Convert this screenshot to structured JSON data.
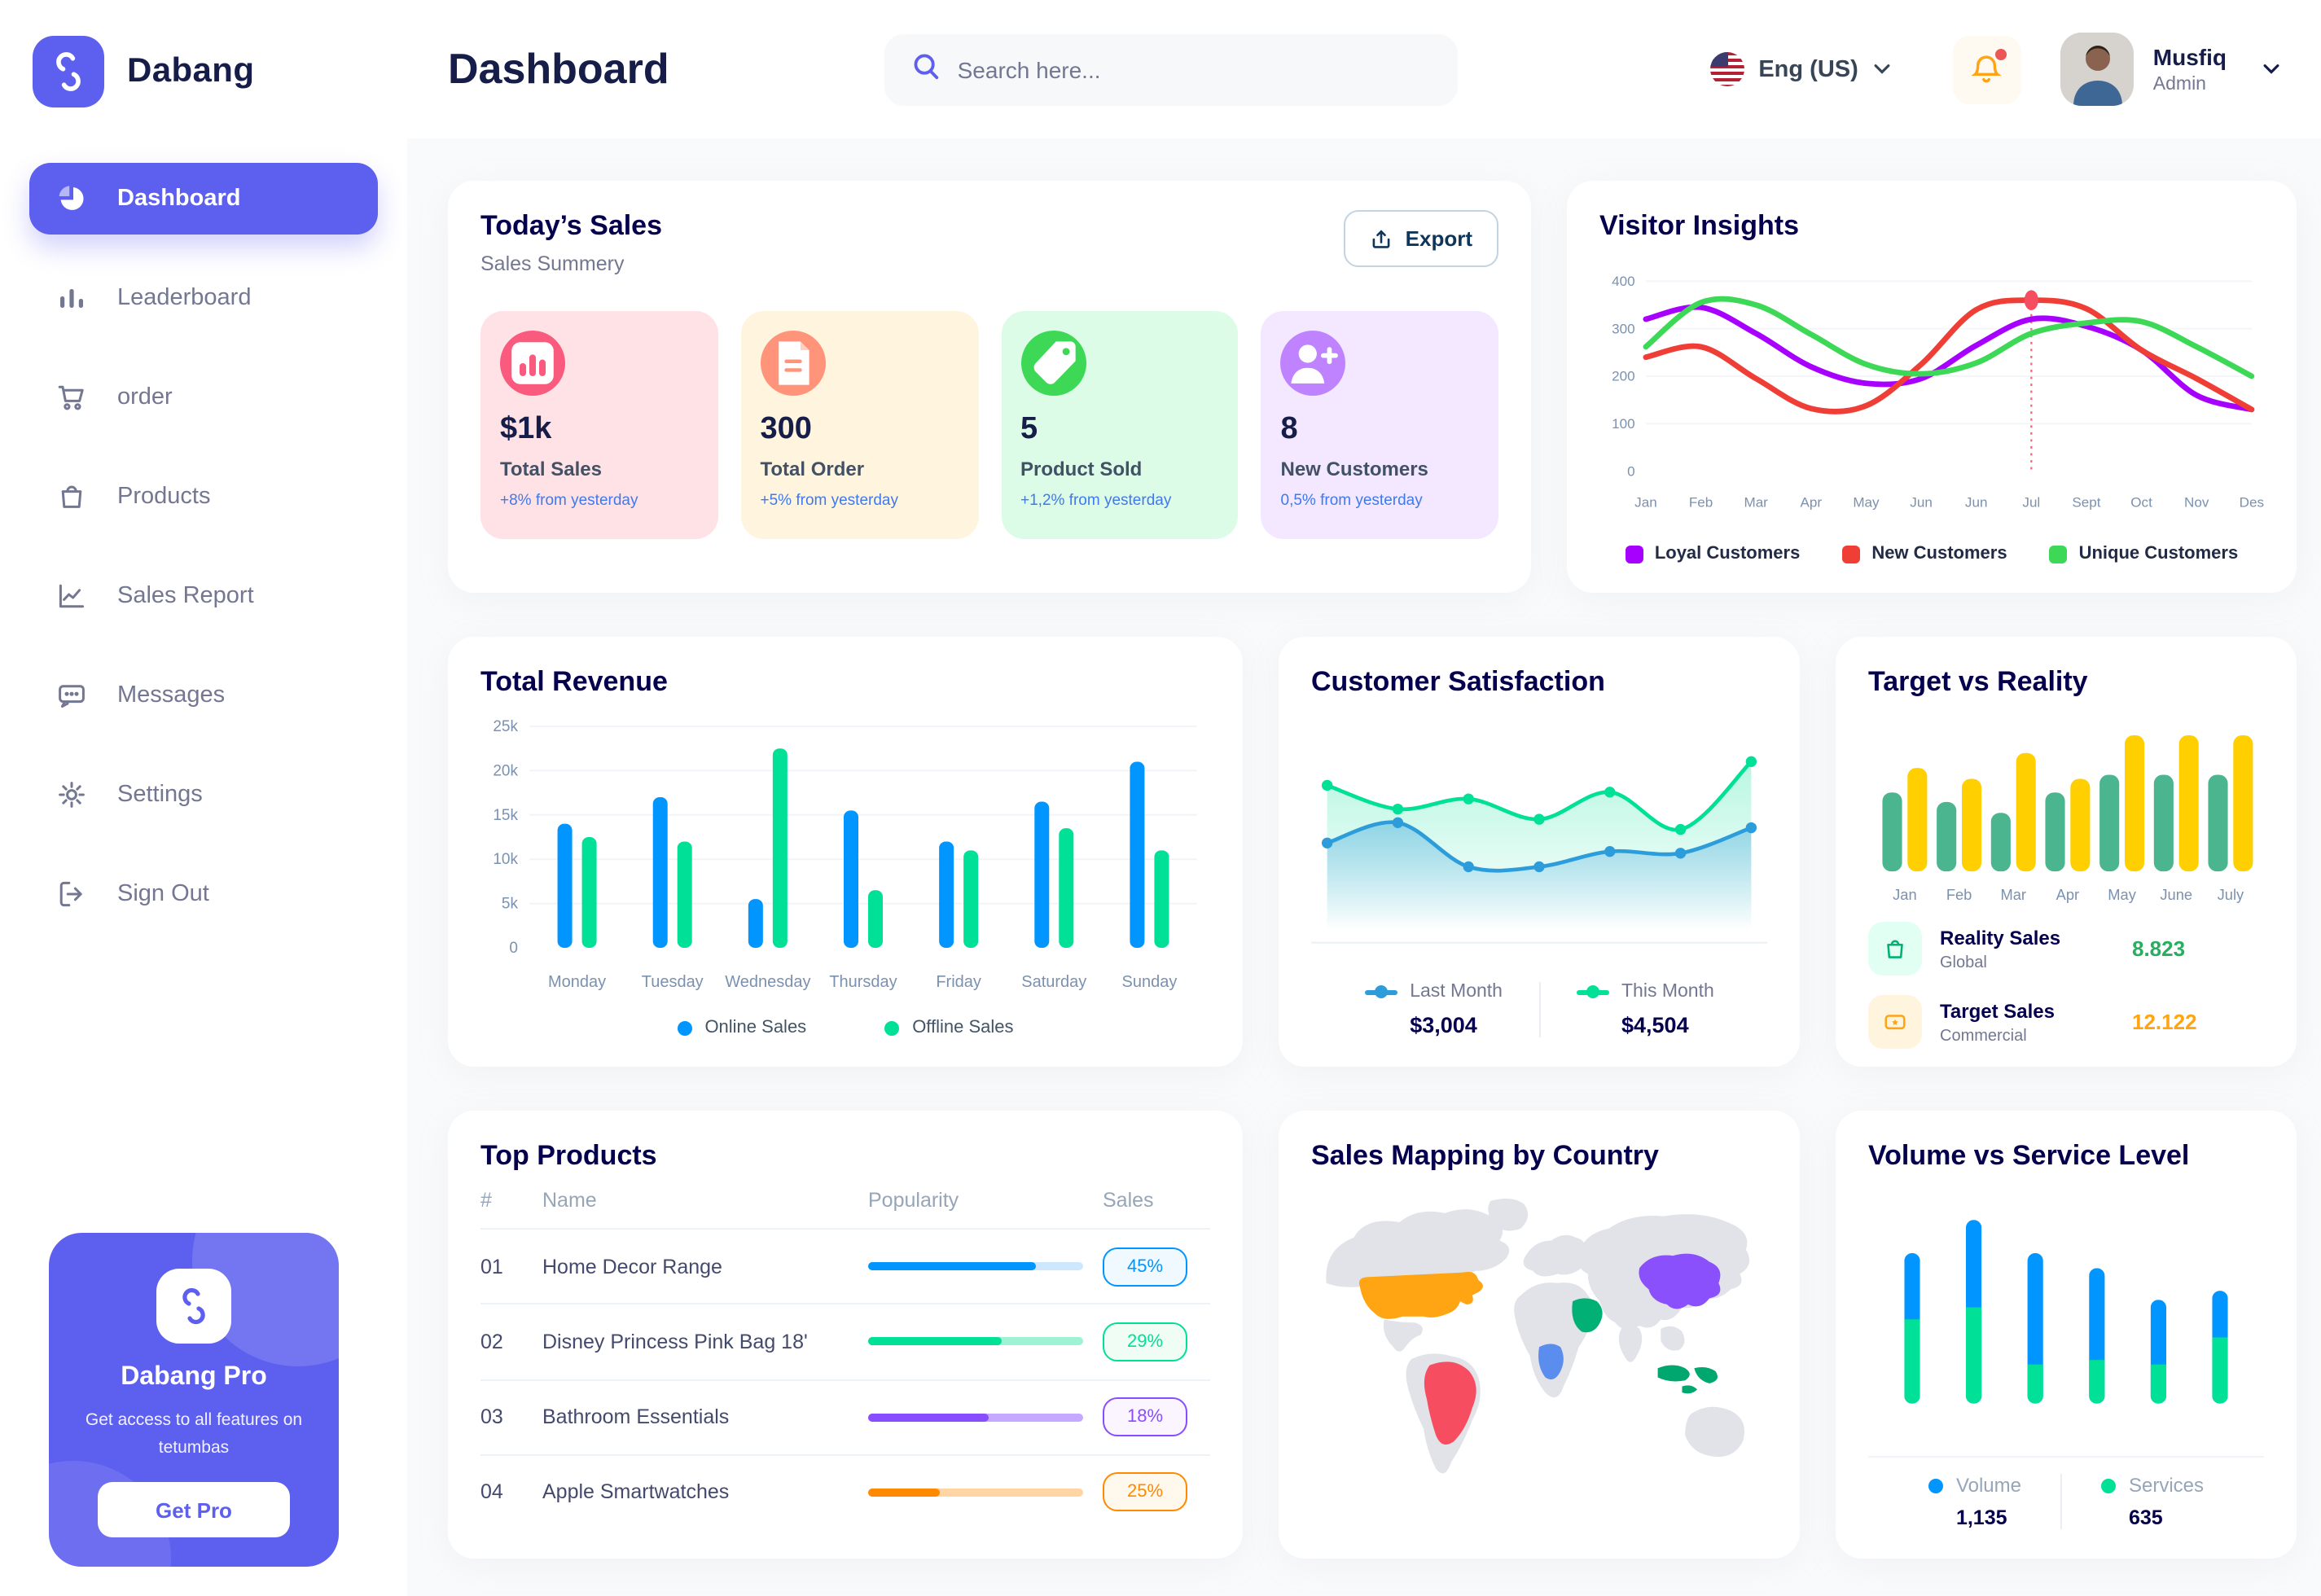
{
  "sidebar": {
    "brand": "Dabang",
    "items": [
      {
        "label": "Dashboard",
        "icon": "dashboard-icon",
        "active": true
      },
      {
        "label": "Leaderboard",
        "icon": "leaderboard-icon",
        "active": false
      },
      {
        "label": "order",
        "icon": "cart-icon",
        "active": false
      },
      {
        "label": "Products",
        "icon": "bag-icon",
        "active": false
      },
      {
        "label": "Sales Report",
        "icon": "sales-report-icon",
        "active": false
      },
      {
        "label": "Messages",
        "icon": "messages-icon",
        "active": false
      },
      {
        "label": "Settings",
        "icon": "settings-icon",
        "active": false
      },
      {
        "label": "Sign Out",
        "icon": "sign-out-icon",
        "active": false
      }
    ],
    "pro": {
      "title": "Dabang Pro",
      "subtitle": "Get access to all features on tetumbas",
      "button": "Get Pro"
    }
  },
  "header": {
    "title": "Dashboard",
    "search_placeholder": "Search here...",
    "language": "Eng (US)",
    "user": {
      "name": "Musfiq",
      "role": "Admin"
    }
  },
  "todays_sales": {
    "title": "Today’s Sales",
    "subtitle": "Sales Summery",
    "export_label": "Export",
    "stats": [
      {
        "value": "$1k",
        "label": "Total Sales",
        "delta": "+8% from yesterday",
        "bg": "#FFE2E5",
        "icon_bg": "#FA5A7D",
        "icon": "stat-chart-icon"
      },
      {
        "value": "300",
        "label": "Total Order",
        "delta": "+5% from yesterday",
        "bg": "#FFF4DE",
        "icon_bg": "#FF947A",
        "icon": "stat-order-icon"
      },
      {
        "value": "5",
        "label": "Product Sold",
        "delta": "+1,2% from yesterday",
        "bg": "#DCFCE7",
        "icon_bg": "#3CD856",
        "icon": "stat-tag-icon"
      },
      {
        "value": "8",
        "label": "New Customers",
        "delta": "0,5% from yesterday",
        "bg": "#F3E8FF",
        "icon_bg": "#BF83FF",
        "icon": "stat-user-plus-icon"
      }
    ]
  },
  "top_products": {
    "title": "Top Products",
    "headers": [
      "#",
      "Name",
      "Popularity",
      "Sales"
    ],
    "rows": [
      {
        "num": "01",
        "name": "Home Decor Range",
        "value": "45%",
        "fill": 0.78,
        "color": "#0095FF",
        "track": "#CDE7FF",
        "badge_bg": "#F0F9FF"
      },
      {
        "num": "02",
        "name": "Disney Princess Pink Bag 18'",
        "value": "29%",
        "fill": 0.62,
        "color": "#00E096",
        "track": "#9DF3D4",
        "badge_bg": "#F0FDF4"
      },
      {
        "num": "03",
        "name": "Bathroom Essentials",
        "value": "18%",
        "fill": 0.56,
        "color": "#884DFF",
        "track": "#C5A8FF",
        "badge_bg": "#FBF5FF"
      },
      {
        "num": "04",
        "name": "Apple Smartwatches",
        "value": "25%",
        "fill": 0.33,
        "color": "#FF8900",
        "track": "#FFD5A4",
        "badge_bg": "#FFF8EC"
      }
    ]
  },
  "chart_data": [
    {
      "id": "visitor_insights",
      "type": "line",
      "title": "Visitor Insights",
      "x": [
        "Jan",
        "Feb",
        "Mar",
        "Apr",
        "May",
        "Jun",
        "Jun",
        "Jul",
        "Sept",
        "Oct",
        "Nov",
        "Des"
      ],
      "ylim": [
        0,
        400
      ],
      "yticks": [
        0,
        100,
        200,
        300,
        400
      ],
      "grid": true,
      "legend_position": "bottom",
      "series": [
        {
          "name": "Loyal Customers",
          "color": "#A700FF",
          "values": [
            320,
            345,
            290,
            220,
            185,
            195,
            265,
            320,
            305,
            255,
            160,
            130
          ]
        },
        {
          "name": "New Customers",
          "color": "#EF3E36",
          "values": [
            240,
            262,
            195,
            132,
            138,
            225,
            340,
            360,
            342,
            255,
            195,
            130
          ]
        },
        {
          "name": "Unique Customers",
          "color": "#3CD856",
          "values": [
            262,
            355,
            350,
            288,
            225,
            205,
            228,
            290,
            312,
            315,
            262,
            200
          ]
        }
      ],
      "annotation": {
        "x_index": 7,
        "value": 360,
        "color": "#F64E60"
      }
    },
    {
      "id": "total_revenue",
      "type": "bar",
      "title": "Total Revenue",
      "categories": [
        "Monday",
        "Tuesday",
        "Wednesday",
        "Thursday",
        "Friday",
        "Saturday",
        "Sunday"
      ],
      "ylim": [
        0,
        25000
      ],
      "yticks": [
        "0",
        "5k",
        "10k",
        "15k",
        "20k",
        "25k"
      ],
      "grid": true,
      "legend_position": "bottom",
      "series": [
        {
          "name": "Online Sales",
          "color": "#0095FF",
          "values": [
            14000,
            17000,
            5500,
            15500,
            12000,
            16500,
            21000
          ]
        },
        {
          "name": "Offline Sales",
          "color": "#00E096",
          "values": [
            12500,
            12000,
            22500,
            6500,
            11000,
            13500,
            11000
          ]
        }
      ]
    },
    {
      "id": "customer_satisfaction",
      "type": "area",
      "title": "Customer Satisfaction",
      "ylim": [
        0,
        10
      ],
      "grid": false,
      "legend_position": "bottom",
      "series": [
        {
          "name": "Last Month",
          "color": "#2D9CDB",
          "total": "$3,004",
          "values": [
            3.8,
            5.0,
            2.4,
            2.4,
            3.3,
            3.2,
            4.7
          ]
        },
        {
          "name": "This Month",
          "color": "#00E096",
          "total": "$4,504",
          "values": [
            7.2,
            5.8,
            6.4,
            5.2,
            6.8,
            4.6,
            8.6
          ]
        }
      ]
    },
    {
      "id": "target_vs_reality",
      "type": "bar",
      "title": "Target vs Reality",
      "categories": [
        "Jan",
        "Feb",
        "Mar",
        "Apr",
        "May",
        "June",
        "July"
      ],
      "ylim": [
        0,
        12
      ],
      "grid": false,
      "legend_position": "bottom",
      "series": [
        {
          "name": "Reality Sales",
          "subtitle": "Global",
          "color": "#4AB58E",
          "value_label": "8.823",
          "value_color": "#27AE60",
          "icon_bg": "#E2FFF3",
          "icon": "bag-green-icon",
          "values": [
            5.8,
            5.1,
            4.3,
            5.8,
            7.1,
            7.1,
            7.1
          ]
        },
        {
          "name": "Target Sales",
          "subtitle": "Commercial",
          "color": "#FFCF00",
          "value_label": "12.122",
          "value_color": "#FFA412",
          "icon_bg": "#FFF4DE",
          "icon": "ticket-orange-icon",
          "values": [
            7.6,
            6.8,
            8.7,
            6.8,
            10,
            10,
            10
          ]
        }
      ]
    },
    {
      "id": "sales_map",
      "type": "map",
      "title": "Sales Mapping by Country",
      "countries": [
        {
          "name": "United States",
          "color": "#FFA412"
        },
        {
          "name": "Brazil",
          "color": "#F64E60"
        },
        {
          "name": "DR Congo",
          "color": "#5A8DEE"
        },
        {
          "name": "Saudi Arabia",
          "color": "#00B074"
        },
        {
          "name": "China",
          "color": "#8950FC"
        },
        {
          "name": "Indonesia",
          "color": "#00A76F"
        }
      ]
    },
    {
      "id": "volume_service",
      "type": "stacked-bar",
      "title": "Volume vs Service Level",
      "legend_position": "bottom",
      "series": [
        {
          "name": "Volume",
          "color": "#0095FF",
          "total": "1,135",
          "values": [
            44,
            58,
            74,
            61,
            43,
            31
          ]
        },
        {
          "name": "Services",
          "color": "#00E096",
          "total": "635",
          "values": [
            56,
            64,
            26,
            29,
            26,
            44
          ]
        }
      ]
    }
  ]
}
